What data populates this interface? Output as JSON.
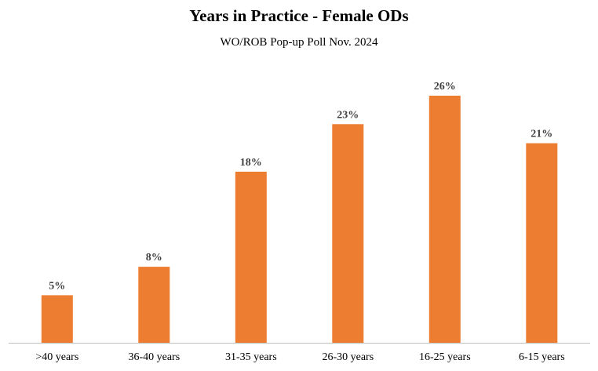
{
  "chart_data": {
    "type": "bar",
    "title": "Years in Practice - Female ODs",
    "subtitle": "WO/ROB Pop-up Poll Nov. 2024",
    "categories": [
      ">40 years",
      "36-40 years",
      "31-35 years",
      "26-30 years",
      "16-25 years",
      "6-15 years"
    ],
    "values": [
      5,
      8,
      18,
      23,
      26,
      21
    ],
    "data_labels": [
      "5%",
      "8%",
      "18%",
      "23%",
      "26%",
      "21%"
    ],
    "xlabel": "",
    "ylabel": "",
    "ylim": [
      0,
      26
    ],
    "grid": false,
    "legend": "none",
    "bar_color": "#ED7D31",
    "axis_color": "#BFBFBF"
  }
}
